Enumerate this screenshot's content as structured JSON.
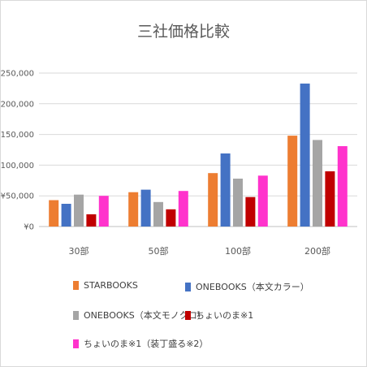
{
  "chart_data": {
    "type": "bar",
    "title": "三社価格比較",
    "xlabel": "",
    "ylabel": "",
    "ylim": [
      0,
      250000
    ],
    "yticks": [
      0,
      50000,
      100000,
      150000,
      200000,
      250000
    ],
    "ytick_labels": [
      "¥0",
      "¥50,000",
      "¥100,000",
      "¥150,000",
      "¥200,000",
      "¥250,000"
    ],
    "grid": true,
    "legend_position": "bottom",
    "categories": [
      "30部",
      "50部",
      "100部",
      "200部"
    ],
    "series": [
      {
        "name": "STARBOOKS",
        "color": "#ED7D31",
        "values": [
          43000,
          56000,
          87000,
          148000
        ]
      },
      {
        "name": "ONEBOOKS（本文カラー）",
        "color": "#4472C4",
        "values": [
          37000,
          60000,
          119000,
          233000
        ]
      },
      {
        "name": "ONEBOOKS（本文モノクロ）",
        "color": "#A5A5A5",
        "values": [
          52000,
          40000,
          78000,
          141000
        ]
      },
      {
        "name": "ちょいのま※1",
        "color": "#C00000",
        "values": [
          20000,
          28000,
          48000,
          90000
        ]
      },
      {
        "name": "ちょいのま※1（装丁盛る※2）",
        "color": "#FF33CC",
        "values": [
          50000,
          58000,
          83000,
          131000
        ]
      }
    ]
  }
}
